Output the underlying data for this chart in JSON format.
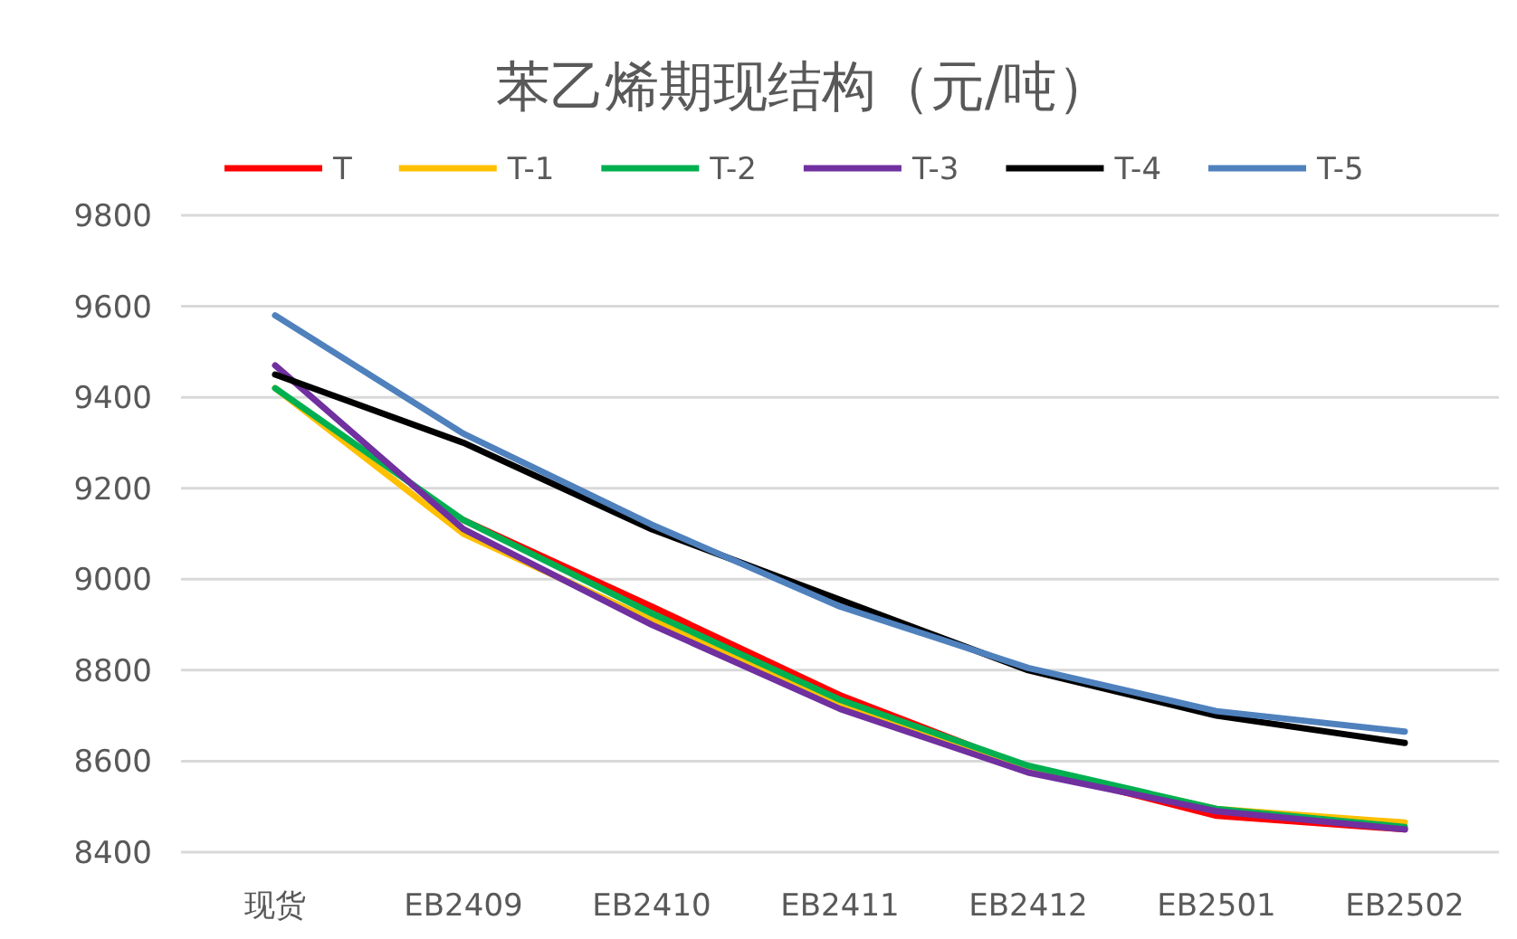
{
  "chart_data": {
    "type": "line",
    "title": "苯乙烯期现结构（元/吨）",
    "categories": [
      "现货",
      "EB2409",
      "EB2410",
      "EB2411",
      "EB2412",
      "EB2501",
      "EB2502"
    ],
    "series": [
      {
        "name": "T",
        "color": "#ff0000",
        "values": [
          null,
          9130,
          8940,
          8745,
          8585,
          8480,
          8450
        ]
      },
      {
        "name": "T-1",
        "color": "#ffc000",
        "values": [
          9420,
          9100,
          8910,
          8725,
          8585,
          8495,
          8465
        ]
      },
      {
        "name": "T-2",
        "color": "#00b050",
        "values": [
          9420,
          9130,
          8925,
          8735,
          8590,
          8495,
          8455
        ]
      },
      {
        "name": "T-3",
        "color": "#7030a0",
        "values": [
          9470,
          9110,
          8900,
          8715,
          8575,
          8490,
          8450
        ]
      },
      {
        "name": "T-4",
        "color": "#000000",
        "values": [
          9450,
          9300,
          9110,
          null,
          8800,
          8700,
          8640
        ]
      },
      {
        "name": "T-5",
        "color": "#4f81bd",
        "values": [
          9580,
          9320,
          9120,
          8940,
          8805,
          8710,
          8665
        ]
      }
    ],
    "ylim": [
      8400,
      9800
    ],
    "yticks": [
      8400,
      8600,
      8800,
      9000,
      9200,
      9400,
      9600,
      9800
    ],
    "grid": "y",
    "legend": "top",
    "marker": "none",
    "line_style": "solid"
  }
}
